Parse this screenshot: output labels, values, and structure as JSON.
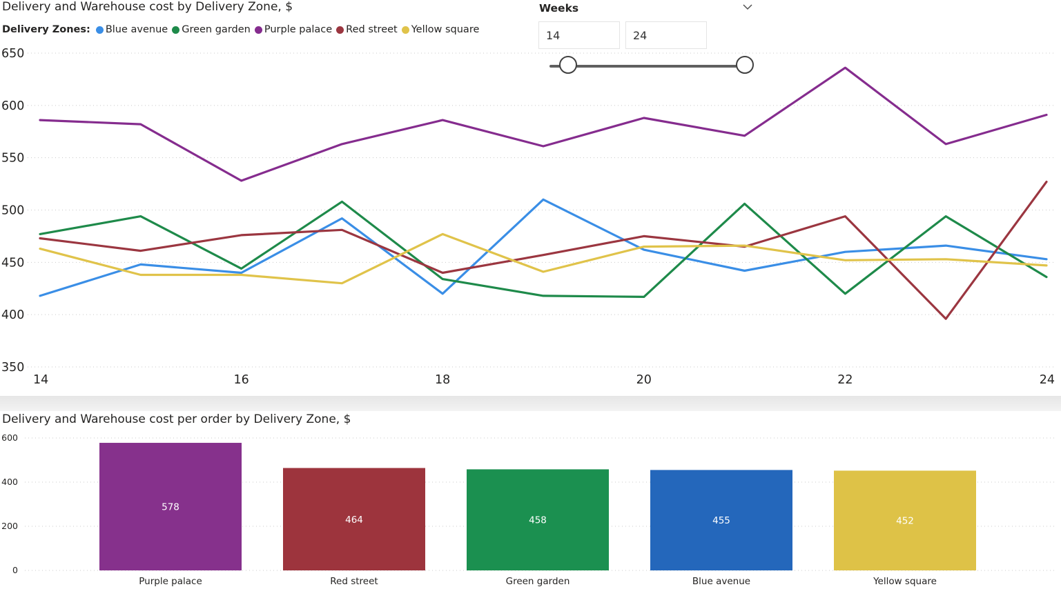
{
  "line_chart": {
    "title": "Delivery and Warehouse cost by Delivery Zone, $",
    "legend_title": "Delivery Zones:"
  },
  "bar_chart": {
    "title": "Delivery and Warehouse cost per order by Delivery Zone, $"
  },
  "slicer": {
    "title": "Weeks",
    "min_value": "14",
    "max_value": "24",
    "range": [
      14,
      24
    ],
    "chevron_icon": "chevron-down-icon"
  },
  "chart_data": [
    {
      "type": "line",
      "title": "Delivery and Warehouse cost by Delivery Zone, $",
      "legend_title": "Delivery Zones:",
      "legend_position": "top-left",
      "x": [
        14,
        15,
        16,
        17,
        18,
        19,
        20,
        21,
        22,
        23,
        24
      ],
      "x_ticks": [
        14,
        16,
        18,
        20,
        22,
        24
      ],
      "xlim": [
        14,
        24
      ],
      "ylim": [
        350,
        650
      ],
      "y_ticks": [
        350,
        400,
        450,
        500,
        550,
        600,
        650
      ],
      "grid": true,
      "series": [
        {
          "name": "Blue avenue",
          "color": "#3A8EE6",
          "values": [
            418,
            448,
            440,
            492,
            420,
            510,
            462,
            442,
            460,
            466,
            453
          ]
        },
        {
          "name": "Green garden",
          "color": "#1E8A4A",
          "values": [
            477,
            494,
            444,
            508,
            434,
            418,
            417,
            506,
            420,
            494,
            436
          ]
        },
        {
          "name": "Purple palace",
          "color": "#852C8E",
          "values": [
            586,
            582,
            528,
            563,
            586,
            561,
            588,
            571,
            636,
            563,
            591
          ]
        },
        {
          "name": "Red street",
          "color": "#9B3640",
          "values": [
            473,
            461,
            476,
            481,
            440,
            457,
            475,
            465,
            494,
            396,
            527
          ]
        },
        {
          "name": "Yellow square",
          "color": "#E0C34A",
          "values": [
            463,
            438,
            438,
            430,
            477,
            441,
            465,
            466,
            452,
            453,
            447
          ]
        }
      ]
    },
    {
      "type": "bar",
      "title": "Delivery and Warehouse cost per order by Delivery Zone, $",
      "categories": [
        "Purple palace",
        "Red street",
        "Green garden",
        "Blue avenue",
        "Yellow square"
      ],
      "values": [
        578,
        464,
        458,
        455,
        452
      ],
      "data_labels": [
        "578",
        "464",
        "458",
        "455",
        "452"
      ],
      "colors": [
        "#86318C",
        "#9D343D",
        "#1B9050",
        "#2467BB",
        "#DEC247"
      ],
      "ylim": [
        0,
        600
      ],
      "y_ticks": [
        0,
        200,
        400,
        600
      ],
      "grid": true
    }
  ]
}
